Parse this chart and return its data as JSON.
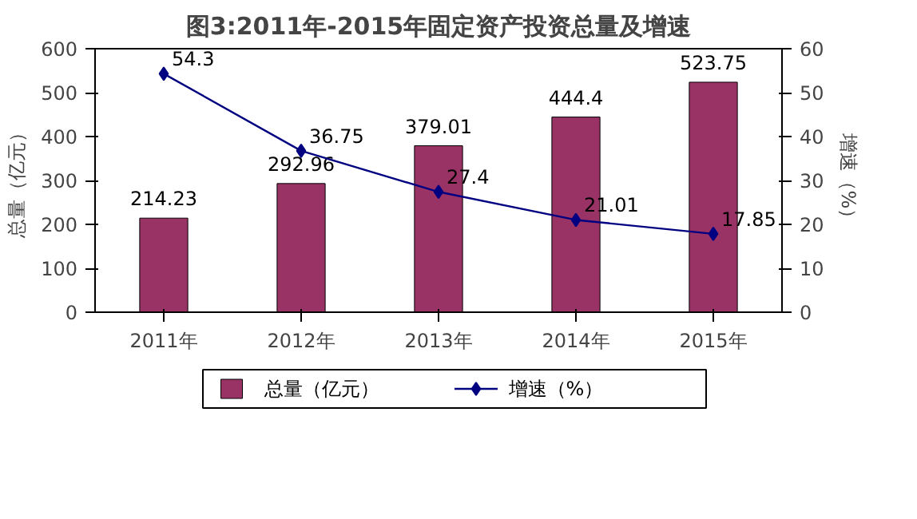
{
  "chart_data": {
    "type": "bar",
    "title": "图3:2011年-2015年固定资产投资总量及增速",
    "ylabel": "总量（亿元）",
    "y2label": "增速（%）",
    "categories": [
      "2011年",
      "2012年",
      "2013年",
      "2014年",
      "2015年"
    ],
    "series": [
      {
        "name": "总量（亿元）",
        "color": "#993366",
        "values": [
          214.23,
          292.96,
          379.01,
          444.4,
          523.75
        ]
      },
      {
        "name": "增速（%）",
        "type": "line",
        "axis": "y2",
        "color": "#000080",
        "marker": "diamond",
        "values": [
          54.3,
          36.75,
          27.4,
          21.01,
          17.85
        ]
      }
    ],
    "ylim": [
      0,
      600
    ],
    "yticks": [
      0,
      100,
      200,
      300,
      400,
      500,
      600
    ],
    "y2lim": [
      0,
      60
    ],
    "y2ticks": [
      0,
      10,
      20,
      30,
      40,
      50,
      60
    ],
    "data_labels": true,
    "legend": "bottom",
    "grid": false
  }
}
